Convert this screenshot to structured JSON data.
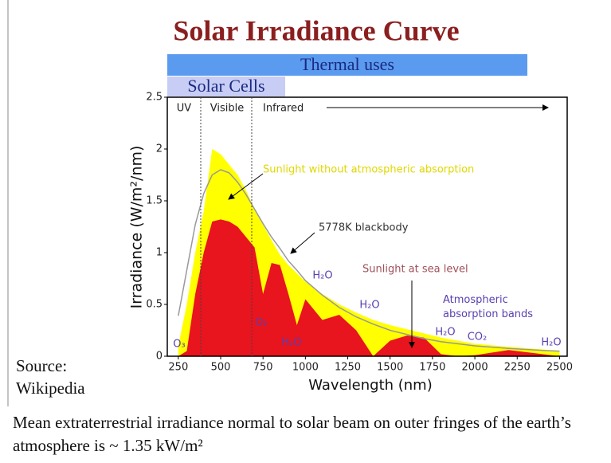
{
  "chart_data": {
    "type": "area",
    "title": "Solar Irradiance Curve",
    "bands": [
      "Thermal uses",
      "Solar Cells"
    ],
    "regions": [
      "UV",
      "Visible",
      "Infrared"
    ],
    "x_label": "Wavelength (nm)",
    "y_label": "Irradiance (W/m²/nm)",
    "x": [
      250,
      300,
      350,
      400,
      450,
      500,
      550,
      600,
      650,
      700,
      750,
      800,
      850,
      900,
      950,
      1000,
      1100,
      1200,
      1300,
      1400,
      1500,
      1600,
      1700,
      1800,
      1900,
      2000,
      2200,
      2400,
      2500
    ],
    "series": [
      {
        "name": "Sunlight without atmospheric absorption",
        "color": "#ffff00",
        "values": [
          0.1,
          0.5,
          1.0,
          1.4,
          2.0,
          1.95,
          1.85,
          1.75,
          1.6,
          1.42,
          1.27,
          1.12,
          0.98,
          0.88,
          0.8,
          0.72,
          0.6,
          0.5,
          0.42,
          0.35,
          0.3,
          0.26,
          0.22,
          0.18,
          0.15,
          0.12,
          0.09,
          0.065,
          0.05
        ]
      },
      {
        "name": "Sunlight at sea level",
        "color": "#e8141e",
        "values": [
          0,
          0.05,
          0.6,
          1.0,
          1.3,
          1.32,
          1.3,
          1.25,
          1.15,
          1.05,
          0.6,
          0.9,
          0.88,
          0.6,
          0.3,
          0.55,
          0.35,
          0.4,
          0.25,
          0,
          0.15,
          0.2,
          0.18,
          0.02,
          0,
          0.01,
          0.06,
          0.02,
          0
        ]
      },
      {
        "name": "5778K blackbody",
        "color": "#999999",
        "style": "line",
        "values": [
          0.39,
          0.83,
          1.27,
          1.57,
          1.75,
          1.8,
          1.77,
          1.68,
          1.56,
          1.42,
          1.28,
          1.15,
          1.04,
          0.92,
          0.83,
          0.73,
          0.59,
          0.47,
          0.38,
          0.31,
          0.25,
          0.21,
          0.17,
          0.14,
          0.12,
          0.1,
          0.075,
          0.056,
          0.049
        ]
      }
    ],
    "absorbers": [
      "O₃",
      "O₂",
      "H₂O",
      "H₂O",
      "H₂O",
      "H₂O",
      "CO₂",
      "H₂O"
    ],
    "absorption_label": "Atmospheric absorption bands",
    "xlim": [
      185,
      2545
    ],
    "xticks": [
      250,
      500,
      750,
      1000,
      1250,
      1500,
      1750,
      2000,
      2250,
      2500
    ],
    "ylim": [
      0,
      2.5
    ],
    "yticks": [
      0,
      0.5,
      1,
      1.5,
      2,
      2.5
    ]
  },
  "source": [
    "Source:",
    "Wikipedia"
  ],
  "footer": "Mean extraterrestrial irradiance normal to solar beam on outer fringes of the earth’s atmosphere is ~ 1.35 kW/m²"
}
